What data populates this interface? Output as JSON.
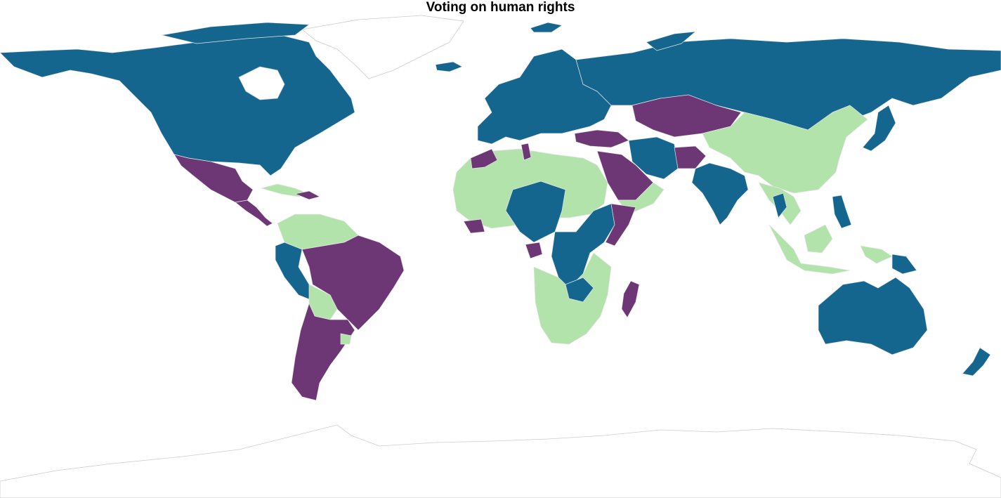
{
  "title": "Voting on human rights",
  "colors": {
    "blue": "#15668f",
    "purple": "#6d3675",
    "green": "#b1e3ab",
    "border": "#e6e6e6",
    "unshaded": "#ffffff"
  },
  "regions": {
    "north-america": "blue",
    "greenland": "unshaded",
    "mexico": "purple",
    "central-america": "purple",
    "cuba": "green",
    "colombia-venezuela": "green",
    "peru": "blue",
    "bolivia": "green",
    "brazil": "purple",
    "argentina-chile": "purple",
    "uruguay": "green",
    "western-europe": "blue",
    "russia": "blue",
    "kazakhstan": "purple",
    "mongolia-china": "green",
    "turkey": "purple",
    "saudi-arabia": "purple",
    "oman-yemen": "green",
    "iran": "blue",
    "afghanistan": "purple",
    "india": "blue",
    "southeast-asia": "green",
    "indonesia": "green",
    "philippines": "blue",
    "japan": "blue",
    "australia": "blue",
    "new-zealand": "blue",
    "papua-new-guinea": "blue",
    "north-africa": "green",
    "morocco": "purple",
    "tunisia": "purple",
    "central-africa": "blue",
    "east-africa": "blue",
    "somalia": "purple",
    "southern-africa": "green",
    "madagascar": "purple",
    "antarctica": "unshaded"
  }
}
